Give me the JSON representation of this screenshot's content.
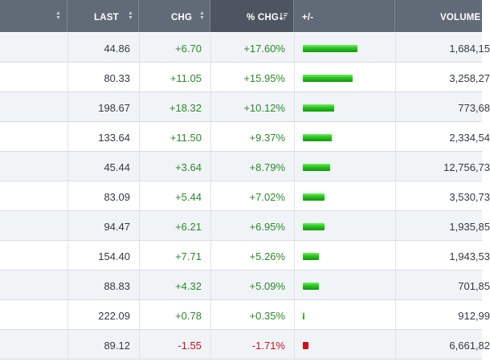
{
  "header": {
    "columns": [
      {
        "id": "symbol",
        "label": ""
      },
      {
        "id": "last",
        "label": "LAST"
      },
      {
        "id": "chg",
        "label": "CHG"
      },
      {
        "id": "pct_chg",
        "label": "% CHG"
      },
      {
        "id": "plus_minus",
        "label": "+/-"
      },
      {
        "id": "volume",
        "label": "VOLUME"
      }
    ]
  },
  "colors": {
    "header_bg": "#616b78",
    "header_sorted_bg": "#4d5560",
    "positive": "#2a8a2a",
    "negative": "#c8101e",
    "bar_positive": "#2cc21f",
    "bar_negative": "#d0101a",
    "row_alt": "#f1f4f7"
  },
  "rows": [
    {
      "last": "44.86",
      "chg": "+6.70",
      "pct_chg": "+17.60%",
      "pct_value": 17.6,
      "volume": "1,684,15"
    },
    {
      "last": "80.33",
      "chg": "+11.05",
      "pct_chg": "+15.95%",
      "pct_value": 15.95,
      "volume": "3,258,27"
    },
    {
      "last": "198.67",
      "chg": "+18.32",
      "pct_chg": "+10.12%",
      "pct_value": 10.12,
      "volume": "773,68"
    },
    {
      "last": "133.64",
      "chg": "+11.50",
      "pct_chg": "+9.37%",
      "pct_value": 9.37,
      "volume": "2,334,54"
    },
    {
      "last": "45.44",
      "chg": "+3.64",
      "pct_chg": "+8.79%",
      "pct_value": 8.79,
      "volume": "12,756,73"
    },
    {
      "last": "83.09",
      "chg": "+5.44",
      "pct_chg": "+7.02%",
      "pct_value": 7.02,
      "volume": "3,530,73"
    },
    {
      "last": "94.47",
      "chg": "+6.21",
      "pct_chg": "+6.95%",
      "pct_value": 6.95,
      "volume": "1,935,85"
    },
    {
      "last": "154.40",
      "chg": "+7.71",
      "pct_chg": "+5.26%",
      "pct_value": 5.26,
      "volume": "1,943,53"
    },
    {
      "last": "88.83",
      "chg": "+4.32",
      "pct_chg": "+5.09%",
      "pct_value": 5.09,
      "volume": "701,85"
    },
    {
      "last": "222.09",
      "chg": "+0.78",
      "pct_chg": "+0.35%",
      "pct_value": 0.35,
      "volume": "912,99"
    },
    {
      "last": "89.12",
      "chg": "-1.55",
      "pct_chg": "-1.71%",
      "pct_value": -1.71,
      "volume": "6,661,82"
    }
  ]
}
